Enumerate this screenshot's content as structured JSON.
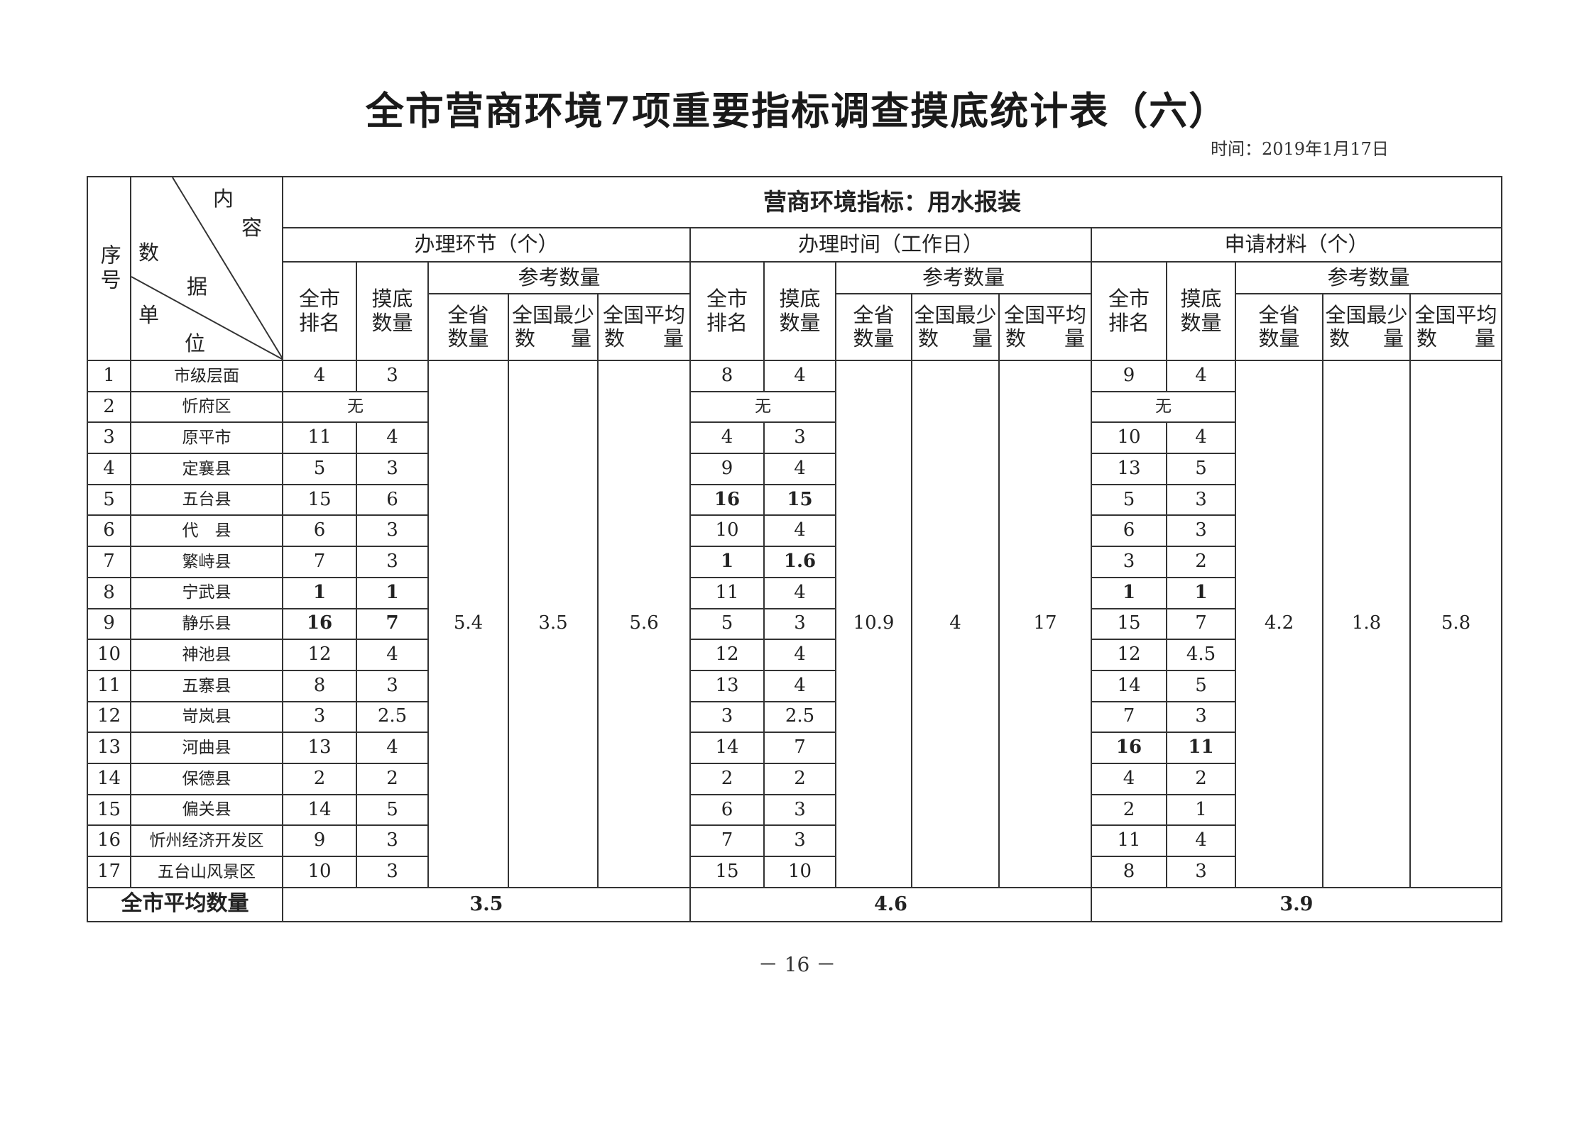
{
  "title": "全市营商环境7项重要指标调查摸底统计表（六）",
  "date": "时间：2019年1月17日",
  "header": {
    "seq": "序号",
    "diag": {
      "content1": "内",
      "content2": "容",
      "data1": "数",
      "data2": "据",
      "unit1": "单",
      "unit2": "位"
    },
    "indicator": "营商环境指标：用水报装",
    "groups": [
      {
        "name": "办理环节（个）"
      },
      {
        "name": "办理时间（工作日）"
      },
      {
        "name": "申请材料（个）"
      }
    ],
    "city_rank": "全市排名",
    "survey_qty": "摸底数量",
    "reference": "参考数量",
    "province_qty": "全省数量",
    "national_min": [
      "全国最少",
      "数",
      "量"
    ],
    "national_avg": [
      "全国平均",
      "数",
      "量"
    ]
  },
  "reference_values": [
    {
      "province": "5.4",
      "national_min": "3.5",
      "national_avg": "5.6"
    },
    {
      "province": "10.9",
      "national_min": "4",
      "national_avg": "17"
    },
    {
      "province": "4.2",
      "national_min": "1.8",
      "national_avg": "5.8"
    }
  ],
  "rows": [
    {
      "seq": "1",
      "unit": "市级层面",
      "g": [
        {
          "rank": "4",
          "qty": "3"
        },
        {
          "rank": "8",
          "qty": "4"
        },
        {
          "rank": "9",
          "qty": "4"
        }
      ]
    },
    {
      "seq": "2",
      "unit": "忻府区",
      "g": [
        {
          "none": "无"
        },
        {
          "none": "无"
        },
        {
          "none": "无"
        }
      ]
    },
    {
      "seq": "3",
      "unit": "原平市",
      "g": [
        {
          "rank": "11",
          "qty": "4"
        },
        {
          "rank": "4",
          "qty": "3"
        },
        {
          "rank": "10",
          "qty": "4"
        }
      ]
    },
    {
      "seq": "4",
      "unit": "定襄县",
      "g": [
        {
          "rank": "5",
          "qty": "3"
        },
        {
          "rank": "9",
          "qty": "4"
        },
        {
          "rank": "13",
          "qty": "5"
        }
      ]
    },
    {
      "seq": "5",
      "unit": "五台县",
      "g": [
        {
          "rank": "15",
          "qty": "6"
        },
        {
          "rank": "16",
          "qty": "15",
          "bold": true
        },
        {
          "rank": "5",
          "qty": "3"
        }
      ]
    },
    {
      "seq": "6",
      "unit": "代　县",
      "g": [
        {
          "rank": "6",
          "qty": "3"
        },
        {
          "rank": "10",
          "qty": "4"
        },
        {
          "rank": "6",
          "qty": "3"
        }
      ]
    },
    {
      "seq": "7",
      "unit": "繁峙县",
      "g": [
        {
          "rank": "7",
          "qty": "3"
        },
        {
          "rank": "1",
          "qty": "1.6",
          "bold": true
        },
        {
          "rank": "3",
          "qty": "2"
        }
      ]
    },
    {
      "seq": "8",
      "unit": "宁武县",
      "g": [
        {
          "rank": "1",
          "qty": "1",
          "bold": true
        },
        {
          "rank": "11",
          "qty": "4"
        },
        {
          "rank": "1",
          "qty": "1",
          "bold": true
        }
      ]
    },
    {
      "seq": "9",
      "unit": "静乐县",
      "g": [
        {
          "rank": "16",
          "qty": "7",
          "bold": true
        },
        {
          "rank": "5",
          "qty": "3"
        },
        {
          "rank": "15",
          "qty": "7"
        }
      ]
    },
    {
      "seq": "10",
      "unit": "神池县",
      "g": [
        {
          "rank": "12",
          "qty": "4"
        },
        {
          "rank": "12",
          "qty": "4"
        },
        {
          "rank": "12",
          "qty": "4.5"
        }
      ]
    },
    {
      "seq": "11",
      "unit": "五寨县",
      "g": [
        {
          "rank": "8",
          "qty": "3"
        },
        {
          "rank": "13",
          "qty": "4"
        },
        {
          "rank": "14",
          "qty": "5"
        }
      ]
    },
    {
      "seq": "12",
      "unit": "岢岚县",
      "g": [
        {
          "rank": "3",
          "qty": "2.5"
        },
        {
          "rank": "3",
          "qty": "2.5"
        },
        {
          "rank": "7",
          "qty": "3"
        }
      ]
    },
    {
      "seq": "13",
      "unit": "河曲县",
      "g": [
        {
          "rank": "13",
          "qty": "4"
        },
        {
          "rank": "14",
          "qty": "7"
        },
        {
          "rank": "16",
          "qty": "11",
          "bold": true
        }
      ]
    },
    {
      "seq": "14",
      "unit": "保德县",
      "g": [
        {
          "rank": "2",
          "qty": "2"
        },
        {
          "rank": "2",
          "qty": "2"
        },
        {
          "rank": "4",
          "qty": "2"
        }
      ]
    },
    {
      "seq": "15",
      "unit": "偏关县",
      "g": [
        {
          "rank": "14",
          "qty": "5"
        },
        {
          "rank": "6",
          "qty": "3"
        },
        {
          "rank": "2",
          "qty": "1"
        }
      ]
    },
    {
      "seq": "16",
      "unit": "忻州经济开发区",
      "g": [
        {
          "rank": "9",
          "qty": "3"
        },
        {
          "rank": "7",
          "qty": "3"
        },
        {
          "rank": "11",
          "qty": "4"
        }
      ]
    },
    {
      "seq": "17",
      "unit": "五台山风景区",
      "g": [
        {
          "rank": "10",
          "qty": "3"
        },
        {
          "rank": "15",
          "qty": "10"
        },
        {
          "rank": "8",
          "qty": "3"
        }
      ]
    }
  ],
  "footer": {
    "label": "全市平均数量",
    "values": [
      "3.5",
      "4.6",
      "3.9"
    ]
  },
  "page_number": "－ 16 －"
}
